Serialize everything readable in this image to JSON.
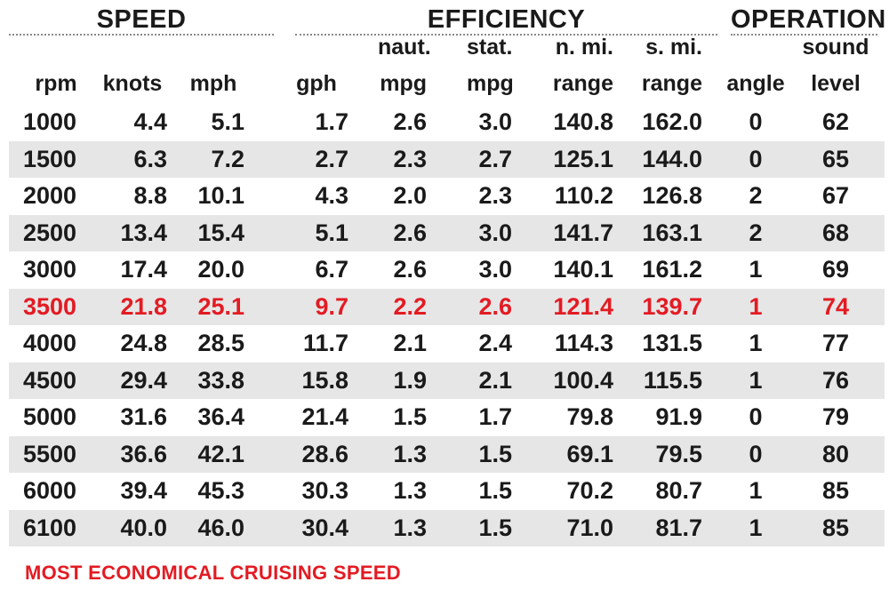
{
  "chart_data": {
    "type": "table",
    "groups": [
      {
        "label": "SPEED"
      },
      {
        "label": "EFFICIENCY"
      },
      {
        "label": "OPERATION"
      }
    ],
    "columns": [
      {
        "top": "",
        "bottom": "rpm"
      },
      {
        "top": "",
        "bottom": "knots"
      },
      {
        "top": "",
        "bottom": "mph"
      },
      {
        "top": "",
        "bottom": "gph"
      },
      {
        "top": "naut.",
        "bottom": "mpg"
      },
      {
        "top": "stat.",
        "bottom": "mpg"
      },
      {
        "top": "n. mi.",
        "bottom": "range"
      },
      {
        "top": "s. mi.",
        "bottom": "range"
      },
      {
        "top": "",
        "bottom": "angle"
      },
      {
        "top": "sound",
        "bottom": "level"
      }
    ],
    "rows": [
      [
        "1000",
        "4.4",
        "5.1",
        "1.7",
        "2.6",
        "3.0",
        "140.8",
        "162.0",
        "0",
        "62"
      ],
      [
        "1500",
        "6.3",
        "7.2",
        "2.7",
        "2.3",
        "2.7",
        "125.1",
        "144.0",
        "0",
        "65"
      ],
      [
        "2000",
        "8.8",
        "10.1",
        "4.3",
        "2.0",
        "2.3",
        "110.2",
        "126.8",
        "2",
        "67"
      ],
      [
        "2500",
        "13.4",
        "15.4",
        "5.1",
        "2.6",
        "3.0",
        "141.7",
        "163.1",
        "2",
        "68"
      ],
      [
        "3000",
        "17.4",
        "20.0",
        "6.7",
        "2.6",
        "3.0",
        "140.1",
        "161.2",
        "1",
        "69"
      ],
      [
        "3500",
        "21.8",
        "25.1",
        "9.7",
        "2.2",
        "2.6",
        "121.4",
        "139.7",
        "1",
        "74"
      ],
      [
        "4000",
        "24.8",
        "28.5",
        "11.7",
        "2.1",
        "2.4",
        "114.3",
        "131.5",
        "1",
        "77"
      ],
      [
        "4500",
        "29.4",
        "33.8",
        "15.8",
        "1.9",
        "2.1",
        "100.4",
        "115.5",
        "1",
        "76"
      ],
      [
        "5000",
        "31.6",
        "36.4",
        "21.4",
        "1.5",
        "1.7",
        "79.8",
        "91.9",
        "0",
        "79"
      ],
      [
        "5500",
        "36.6",
        "42.1",
        "28.6",
        "1.3",
        "1.5",
        "69.1",
        "79.5",
        "0",
        "80"
      ],
      [
        "6000",
        "39.4",
        "45.3",
        "30.3",
        "1.3",
        "1.5",
        "70.2",
        "80.7",
        "1",
        "85"
      ],
      [
        "6100",
        "40.0",
        "46.0",
        "30.4",
        "1.3",
        "1.5",
        "71.0",
        "81.7",
        "1",
        "85"
      ]
    ],
    "highlight_row": 5,
    "highlight_color": "#e31b23",
    "stripe_color": "#e6e6e6",
    "footnote": "MOST ECONOMICAL CRUISING SPEED"
  }
}
